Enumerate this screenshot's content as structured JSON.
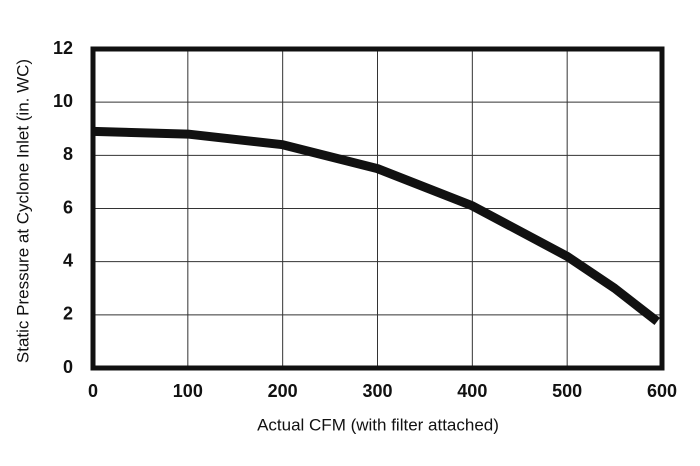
{
  "chart_data": {
    "type": "line",
    "x_label": "Actual CFM (with filter attached)",
    "y_label": "Static Pressure at Cyclone Inlet (in. WC)",
    "x": [
      0,
      100,
      200,
      300,
      400,
      500,
      550,
      595
    ],
    "series": [
      {
        "color": "#111111",
        "values": [
          8.9,
          8.8,
          8.4,
          7.5,
          6.1,
          4.2,
          3.0,
          1.75
        ]
      }
    ],
    "xlim": [
      0,
      600
    ],
    "xticks": [
      0,
      100,
      200,
      300,
      400,
      500,
      600
    ],
    "ylim": [
      0,
      12
    ],
    "yticks": [
      0,
      2,
      4,
      6,
      8,
      10,
      12
    ],
    "grid": true
  }
}
